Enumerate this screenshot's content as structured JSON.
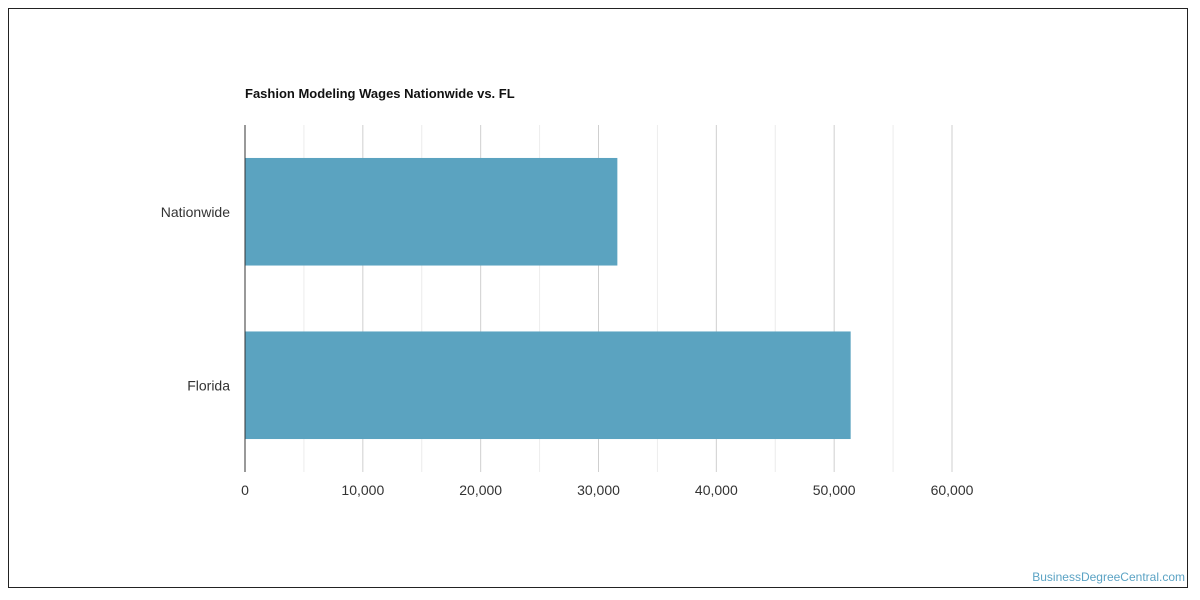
{
  "chart_data": {
    "type": "bar",
    "orientation": "horizontal",
    "title": "Fashion Modeling Wages Nationwide vs. FL",
    "categories": [
      "Nationwide",
      "Florida"
    ],
    "values": [
      31600,
      51400
    ],
    "xlabel": "",
    "ylabel": "",
    "xlim": [
      0,
      60000
    ],
    "ticks": [
      0,
      10000,
      20000,
      30000,
      40000,
      50000,
      60000
    ],
    "tick_labels": [
      "0",
      "10,000",
      "20,000",
      "30,000",
      "40,000",
      "50,000",
      "60,000"
    ],
    "grid": true,
    "bar_color": "#5ba3c0"
  },
  "watermark": "BusinessDegreeCentral.com"
}
